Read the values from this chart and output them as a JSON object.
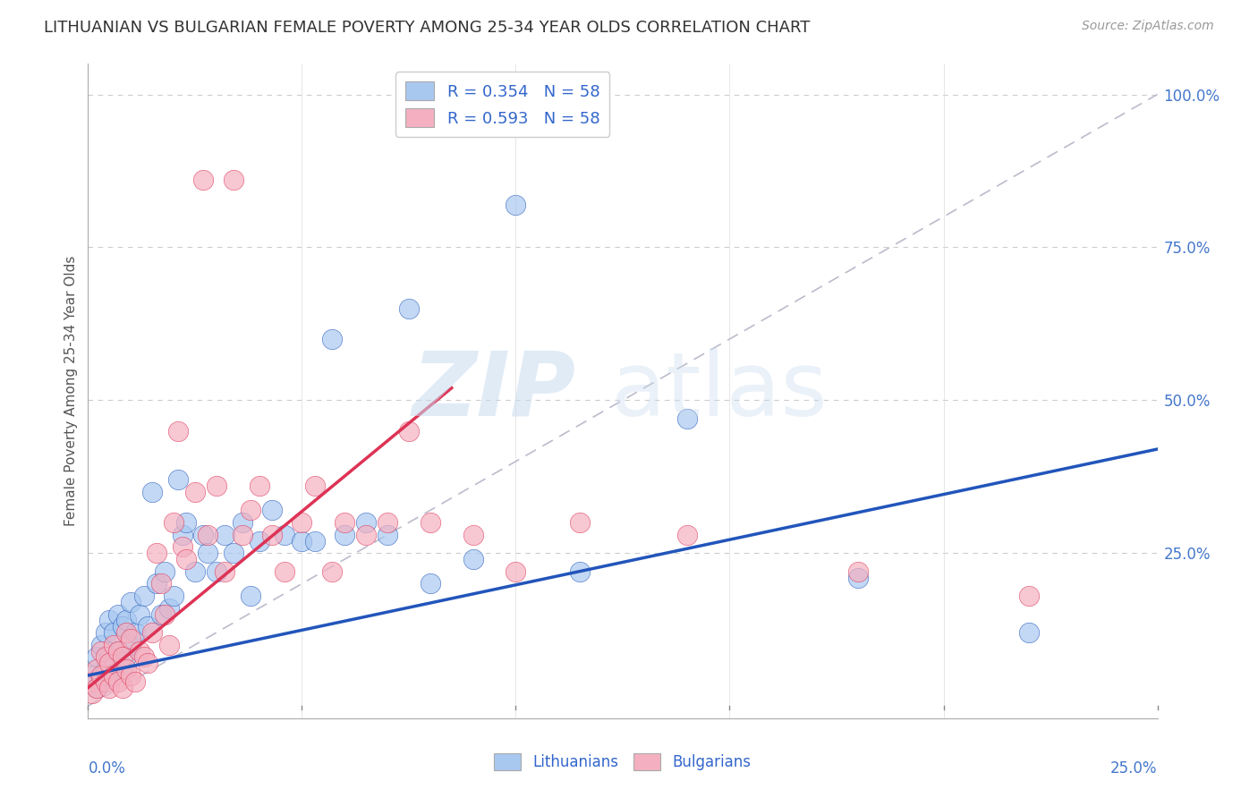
{
  "title": "LITHUANIAN VS BULGARIAN FEMALE POVERTY AMONG 25-34 YEAR OLDS CORRELATION CHART",
  "source": "Source: ZipAtlas.com",
  "ylabel": "Female Poverty Among 25-34 Year Olds",
  "xlim": [
    0.0,
    0.25
  ],
  "ylim": [
    -0.02,
    1.05
  ],
  "color_blue": "#A8C8F0",
  "color_pink": "#F4B0C0",
  "color_blue_line": "#2255BB",
  "color_pink_line": "#DD3355",
  "color_diag": "#BBBBCC",
  "blue_scatter_x": [
    0.001,
    0.002,
    0.002,
    0.003,
    0.003,
    0.004,
    0.004,
    0.005,
    0.005,
    0.005,
    0.006,
    0.006,
    0.007,
    0.007,
    0.008,
    0.008,
    0.009,
    0.009,
    0.01,
    0.01,
    0.011,
    0.012,
    0.013,
    0.014,
    0.015,
    0.016,
    0.017,
    0.018,
    0.019,
    0.02,
    0.021,
    0.022,
    0.023,
    0.025,
    0.027,
    0.028,
    0.03,
    0.032,
    0.034,
    0.036,
    0.038,
    0.04,
    0.043,
    0.046,
    0.05,
    0.053,
    0.057,
    0.06,
    0.065,
    0.07,
    0.075,
    0.08,
    0.09,
    0.1,
    0.115,
    0.14,
    0.18,
    0.22
  ],
  "blue_scatter_y": [
    0.05,
    0.03,
    0.08,
    0.04,
    0.1,
    0.06,
    0.12,
    0.05,
    0.08,
    0.14,
    0.07,
    0.12,
    0.09,
    0.15,
    0.06,
    0.13,
    0.08,
    0.14,
    0.1,
    0.17,
    0.12,
    0.15,
    0.18,
    0.13,
    0.35,
    0.2,
    0.15,
    0.22,
    0.16,
    0.18,
    0.37,
    0.28,
    0.3,
    0.22,
    0.28,
    0.25,
    0.22,
    0.28,
    0.25,
    0.3,
    0.18,
    0.27,
    0.32,
    0.28,
    0.27,
    0.27,
    0.6,
    0.28,
    0.3,
    0.28,
    0.65,
    0.2,
    0.24,
    0.82,
    0.22,
    0.47,
    0.21,
    0.12
  ],
  "pink_scatter_x": [
    0.001,
    0.001,
    0.002,
    0.002,
    0.003,
    0.003,
    0.004,
    0.004,
    0.005,
    0.005,
    0.006,
    0.006,
    0.007,
    0.007,
    0.008,
    0.008,
    0.009,
    0.009,
    0.01,
    0.01,
    0.011,
    0.012,
    0.013,
    0.014,
    0.015,
    0.016,
    0.017,
    0.018,
    0.019,
    0.02,
    0.021,
    0.022,
    0.023,
    0.025,
    0.027,
    0.028,
    0.03,
    0.032,
    0.034,
    0.036,
    0.038,
    0.04,
    0.043,
    0.046,
    0.05,
    0.053,
    0.057,
    0.06,
    0.065,
    0.07,
    0.075,
    0.08,
    0.09,
    0.1,
    0.115,
    0.14,
    0.18,
    0.22
  ],
  "pink_scatter_y": [
    0.04,
    0.02,
    0.06,
    0.03,
    0.05,
    0.09,
    0.04,
    0.08,
    0.03,
    0.07,
    0.05,
    0.1,
    0.04,
    0.09,
    0.03,
    0.08,
    0.06,
    0.12,
    0.05,
    0.11,
    0.04,
    0.09,
    0.08,
    0.07,
    0.12,
    0.25,
    0.2,
    0.15,
    0.1,
    0.3,
    0.45,
    0.26,
    0.24,
    0.35,
    0.86,
    0.28,
    0.36,
    0.22,
    0.86,
    0.28,
    0.32,
    0.36,
    0.28,
    0.22,
    0.3,
    0.36,
    0.22,
    0.3,
    0.28,
    0.3,
    0.45,
    0.3,
    0.28,
    0.22,
    0.3,
    0.28,
    0.22,
    0.18
  ],
  "blue_reg": [
    0.0,
    0.25,
    0.05,
    0.42
  ],
  "pink_reg": [
    0.0,
    0.085,
    0.03,
    0.52
  ]
}
